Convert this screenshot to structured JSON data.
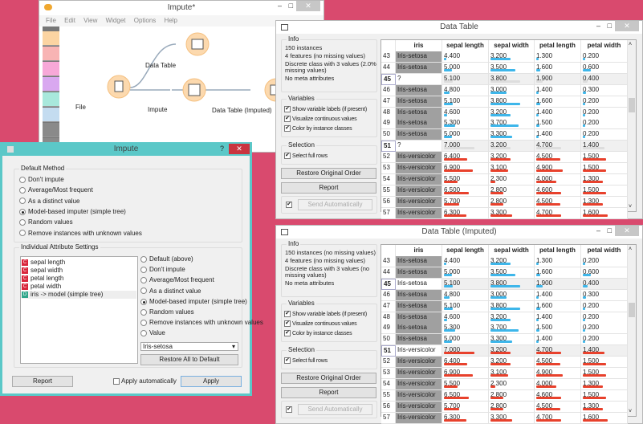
{
  "canvas": {
    "title": "Impute*",
    "menu": [
      "File",
      "Edit",
      "View",
      "Widget",
      "Options",
      "Help"
    ],
    "toolbar_colors": [
      "#fbd4a2",
      "#f8b4b4",
      "#f7a8d8",
      "#d9a8f0",
      "#a8e8dc",
      "#c4dcf0",
      "#8a8a8a",
      "#8a8a8a"
    ],
    "nodes": {
      "file": "File",
      "data_table": "Data Table",
      "impute": "Impute",
      "data_table_imputed": "Data Table (Imputed)"
    }
  },
  "impute": {
    "title": "Impute",
    "help": "?",
    "close": "✕",
    "default_method": {
      "label": "Default Method",
      "options": [
        "Don't impute",
        "Average/Most frequent",
        "As a distinct value",
        "Model-based imputer (simple tree)",
        "Random values",
        "Remove instances with unknown values"
      ],
      "selected": 3
    },
    "individual": {
      "label": "Individual Attribute Settings",
      "attributes": [
        {
          "type": "C",
          "name": "sepal length",
          "color": "#d9263b"
        },
        {
          "type": "C",
          "name": "sepal width",
          "color": "#d9263b"
        },
        {
          "type": "C",
          "name": "petal length",
          "color": "#d9263b"
        },
        {
          "type": "C",
          "name": "petal width",
          "color": "#d9263b"
        },
        {
          "type": "D",
          "name": "iris -> model (simple tree)",
          "color": "#2fa58a"
        }
      ],
      "options": [
        "Default (above)",
        "Don't impute",
        "Average/Most frequent",
        "As a distinct value",
        "Model-based imputer (simple tree)",
        "Random values",
        "Remove instances with unknown values",
        "Value"
      ],
      "selected": 4,
      "value_select": "Iris-setosa",
      "restore": "Restore All to Default"
    },
    "report": "Report",
    "apply_auto": "Apply automatically",
    "apply": "Apply"
  },
  "colors": {
    "setosa": "#3db6ea",
    "versicolor": "#e8412c",
    "missing": "#dddddd"
  },
  "tables": [
    {
      "title": "Data Table",
      "info": {
        "label": "Info",
        "lines": [
          "150 instances",
          "4 features (no missing values)",
          "Discrete class with 3 values (2.0% missing values)",
          "No meta attributes"
        ]
      },
      "variables": {
        "label": "Variables",
        "items": [
          "Show variable labels (if present)",
          "Visualize continuous values",
          "Color by instance classes"
        ]
      },
      "selection": {
        "label": "Selection",
        "items": [
          "Select full rows"
        ]
      },
      "restore": "Restore Original Order",
      "report": "Report",
      "send": "Send Automatically",
      "columns": [
        "iris",
        "sepal length",
        "sepal width",
        "petal length",
        "petal width"
      ],
      "rows": [
        [
          "43",
          "Iris-setosa",
          "4.400",
          "3.200",
          "1.300",
          "0.200"
        ],
        [
          "44",
          "Iris-setosa",
          "5.000",
          "3.500",
          "1.600",
          "0.600"
        ],
        [
          "45",
          "?",
          "5.100",
          "3.800",
          "1.900",
          "0.400"
        ],
        [
          "46",
          "Iris-setosa",
          "4.800",
          "3.000",
          "1.400",
          "0.300"
        ],
        [
          "47",
          "Iris-setosa",
          "5.100",
          "3.800",
          "1.600",
          "0.200"
        ],
        [
          "48",
          "Iris-setosa",
          "4.600",
          "3.200",
          "1.400",
          "0.200"
        ],
        [
          "49",
          "Iris-setosa",
          "5.300",
          "3.700",
          "1.500",
          "0.200"
        ],
        [
          "50",
          "Iris-setosa",
          "5.000",
          "3.300",
          "1.400",
          "0.200"
        ],
        [
          "51",
          "?",
          "7.000",
          "3.200",
          "4.700",
          "1.400"
        ],
        [
          "52",
          "Iris-versicolor",
          "6.400",
          "3.200",
          "4.500",
          "1.500"
        ],
        [
          "53",
          "Iris-versicolor",
          "6.900",
          "3.100",
          "4.900",
          "1.500"
        ],
        [
          "54",
          "Iris-versicolor",
          "5.500",
          "2.300",
          "4.000",
          "1.300"
        ],
        [
          "55",
          "Iris-versicolor",
          "6.500",
          "2.800",
          "4.600",
          "1.500"
        ],
        [
          "56",
          "Iris-versicolor",
          "5.700",
          "2.800",
          "4.500",
          "1.300"
        ],
        [
          "57",
          "Iris-versicolor",
          "6.300",
          "3.300",
          "4.700",
          "1.600"
        ]
      ]
    },
    {
      "title": "Data Table (Imputed)",
      "info": {
        "label": "Info",
        "lines": [
          "150 instances (no missing values)",
          "4 features (no missing values)",
          "Discrete class with 3 values (no missing values)",
          "No meta attributes"
        ]
      },
      "variables": {
        "label": "Variables",
        "items": [
          "Show variable labels (if present)",
          "Visualize continuous values",
          "Color by instance classes"
        ]
      },
      "selection": {
        "label": "Selection",
        "items": [
          "Select full rows"
        ]
      },
      "restore": "Restore Original Order",
      "report": "Report",
      "send": "Send Automatically",
      "columns": [
        "iris",
        "sepal length",
        "sepal width",
        "petal length",
        "petal width"
      ],
      "rows": [
        [
          "43",
          "Iris-setosa",
          "4.400",
          "3.200",
          "1.300",
          "0.200"
        ],
        [
          "44",
          "Iris-setosa",
          "5.000",
          "3.500",
          "1.600",
          "0.600"
        ],
        [
          "45",
          "Iris-setosa",
          "5.100",
          "3.800",
          "1.900",
          "0.400"
        ],
        [
          "46",
          "Iris-setosa",
          "4.800",
          "3.000",
          "1.400",
          "0.300"
        ],
        [
          "47",
          "Iris-setosa",
          "5.100",
          "3.800",
          "1.600",
          "0.200"
        ],
        [
          "48",
          "Iris-setosa",
          "4.600",
          "3.200",
          "1.400",
          "0.200"
        ],
        [
          "49",
          "Iris-setosa",
          "5.300",
          "3.700",
          "1.500",
          "0.200"
        ],
        [
          "50",
          "Iris-setosa",
          "5.000",
          "3.300",
          "1.400",
          "0.200"
        ],
        [
          "51",
          "Iris-versicolor",
          "7.000",
          "3.200",
          "4.700",
          "1.400"
        ],
        [
          "52",
          "Iris-versicolor",
          "6.400",
          "3.200",
          "4.500",
          "1.500"
        ],
        [
          "53",
          "Iris-versicolor",
          "6.900",
          "3.100",
          "4.900",
          "1.500"
        ],
        [
          "54",
          "Iris-versicolor",
          "5.500",
          "2.300",
          "4.000",
          "1.300"
        ],
        [
          "55",
          "Iris-versicolor",
          "6.500",
          "2.800",
          "4.600",
          "1.500"
        ],
        [
          "56",
          "Iris-versicolor",
          "5.700",
          "2.800",
          "4.500",
          "1.300"
        ],
        [
          "57",
          "Iris-versicolor",
          "6.300",
          "3.300",
          "4.700",
          "1.600"
        ]
      ],
      "highlighted_rows": [
        "45",
        "51"
      ]
    }
  ]
}
